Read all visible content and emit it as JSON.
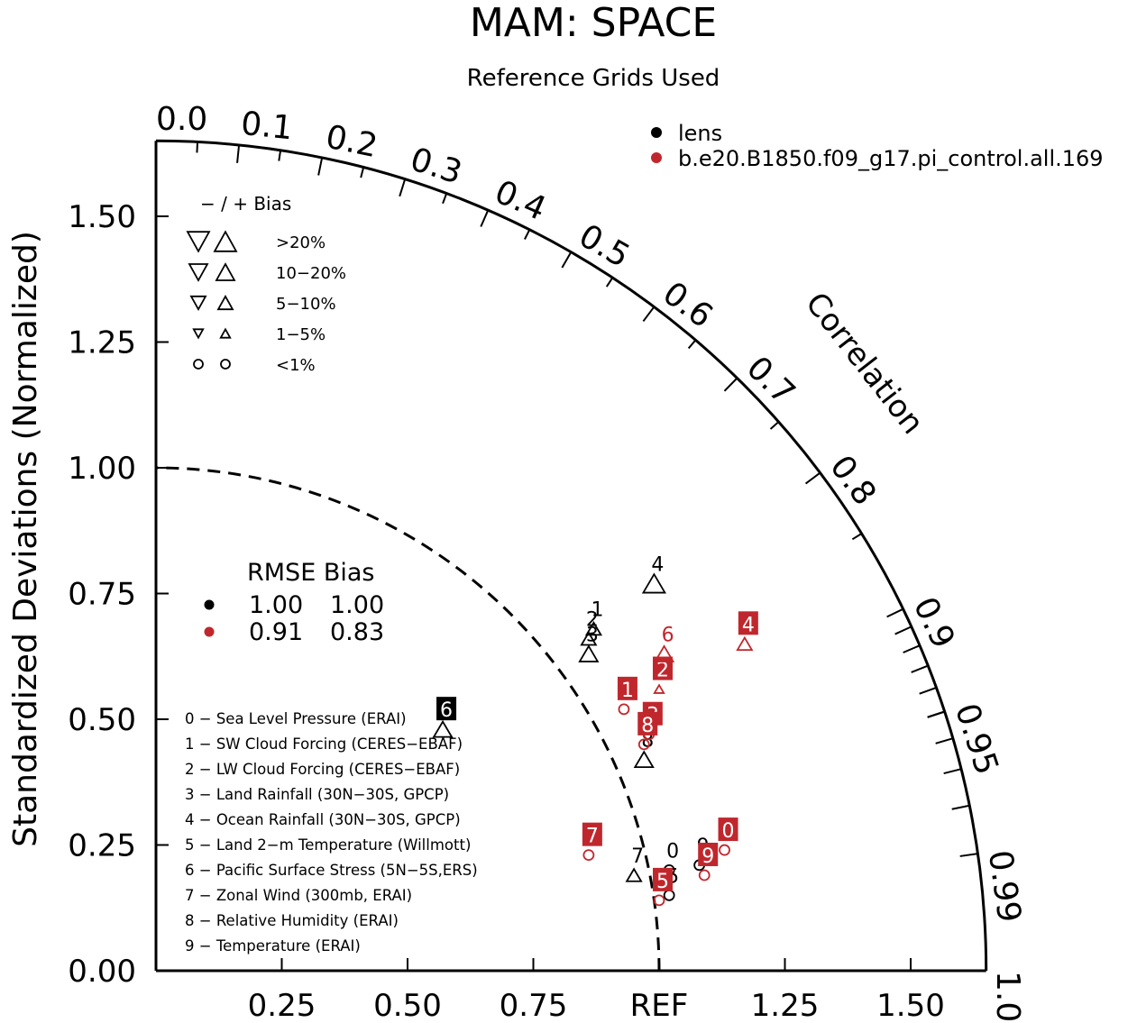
{
  "chart_data": {
    "type": "scatter",
    "title": "MAM: SPACE",
    "subtitle": "Reference Grids Used",
    "ylabel": "Standardized Deviations (Normalized)",
    "arc_label": "Correlation",
    "xlim": [
      0,
      1.65
    ],
    "ylim": [
      0,
      1.65
    ],
    "x_ticks": [
      "0.25",
      "0.50",
      "0.75",
      "REF",
      "1.25",
      "1.50"
    ],
    "x_tick_values": [
      0.25,
      0.5,
      0.75,
      1.0,
      1.25,
      1.5
    ],
    "y_ticks": [
      "0.00",
      "0.25",
      "0.50",
      "0.75",
      "1.00",
      "1.25",
      "1.50"
    ],
    "y_tick_values": [
      0.0,
      0.25,
      0.5,
      0.75,
      1.0,
      1.25,
      1.5
    ],
    "correlation_labels": [
      {
        "text": "0.0",
        "r": 0.0
      },
      {
        "text": "0.1",
        "r": 0.1
      },
      {
        "text": "0.2",
        "r": 0.2
      },
      {
        "text": "0.3",
        "r": 0.3
      },
      {
        "text": "0.4",
        "r": 0.4
      },
      {
        "text": "0.5",
        "r": 0.5
      },
      {
        "text": "0.6",
        "r": 0.6
      },
      {
        "text": "0.7",
        "r": 0.7
      },
      {
        "text": "0.8",
        "r": 0.8
      },
      {
        "text": "0.9",
        "r": 0.9
      },
      {
        "text": "0.95",
        "r": 0.95
      },
      {
        "text": "0.99",
        "r": 0.99
      },
      {
        "text": "1.0",
        "r": 1.0
      }
    ],
    "reference_std": 1.0,
    "grid": false,
    "legend": {
      "placement": "top-right",
      "entries": [
        {
          "label": "lens",
          "color": "#000000"
        },
        {
          "label": "b.e20.B1850.f09_g17.pi_control.all.169",
          "color": "#c0272d"
        }
      ]
    },
    "bias_legend": {
      "header": "− / +    Bias",
      "rows": [
        {
          "label": ">20%",
          "marker": "triangle",
          "size": 3
        },
        {
          "label": "10−20%",
          "marker": "triangle",
          "size": 2.5
        },
        {
          "label": "5−10%",
          "marker": "triangle",
          "size": 2
        },
        {
          "label": "1−5%",
          "marker": "triangle",
          "size": 1.3
        },
        {
          "label": "<1%",
          "marker": "circle",
          "size": 1.8
        }
      ]
    },
    "rmse_table": {
      "header": "RMSE Bias",
      "rows": [
        {
          "color": "#000000",
          "rmse": "1.00",
          "bias": "1.00"
        },
        {
          "color": "#c0272d",
          "rmse": "0.91",
          "bias": "0.83"
        }
      ]
    },
    "variables": [
      "0 − Sea Level Pressure (ERAI)",
      "1 − SW Cloud Forcing (CERES−EBAF)",
      "2 − LW Cloud Forcing (CERES−EBAF)",
      "3 − Land Rainfall (30N−30S, GPCP)",
      "4 − Ocean Rainfall (30N−30S, GPCP)",
      "5 − Land 2−m Temperature (Willmott)",
      "6 − Pacific Surface Stress (5N−5S,ERS)",
      "7 − Zonal Wind (300mb, ERAI)",
      "8 − Relative Humidity (ERAI)",
      "9 − Temperature (ERAI)"
    ],
    "series": [
      {
        "name": "lens",
        "color": "#000000",
        "points": [
          {
            "id": "0",
            "x": 1.02,
            "y": 0.2,
            "marker": "circle",
            "size": 1.8,
            "dir": "up",
            "boxed": false
          },
          {
            "id": "1",
            "x": 0.87,
            "y": 0.68,
            "marker": "triangle",
            "size": 2,
            "dir": "up",
            "boxed": false
          },
          {
            "id": "2",
            "x": 0.86,
            "y": 0.66,
            "marker": "triangle",
            "size": 2,
            "dir": "up",
            "boxed": false
          },
          {
            "id": "3",
            "x": 0.86,
            "y": 0.63,
            "marker": "triangle",
            "size": 2.5,
            "dir": "up",
            "boxed": false
          },
          {
            "id": "4",
            "x": 0.99,
            "y": 0.77,
            "marker": "triangle",
            "size": 3,
            "dir": "up",
            "boxed": false
          },
          {
            "id": "5",
            "x": 1.02,
            "y": 0.15,
            "marker": "circle",
            "size": 1.8,
            "dir": "up",
            "boxed": false
          },
          {
            "id": "6",
            "x": 0.57,
            "y": 0.48,
            "marker": "triangle",
            "size": 2.5,
            "dir": "up",
            "boxed": true
          },
          {
            "id": "7",
            "x": 0.95,
            "y": 0.19,
            "marker": "triangle",
            "size": 2,
            "dir": "up",
            "boxed": false
          },
          {
            "id": "8",
            "x": 0.97,
            "y": 0.42,
            "marker": "triangle",
            "size": 2.5,
            "dir": "up",
            "boxed": false
          },
          {
            "id": "9",
            "x": 1.08,
            "y": 0.21,
            "marker": "circle",
            "size": 1.8,
            "dir": "up",
            "boxed": false
          }
        ]
      },
      {
        "name": "b.e20.B1850.f09_g17.pi_control.all.169",
        "color": "#c0272d",
        "points": [
          {
            "id": "0",
            "x": 1.13,
            "y": 0.24,
            "marker": "circle",
            "size": 1.8,
            "dir": "up",
            "boxed": true
          },
          {
            "id": "1",
            "x": 0.93,
            "y": 0.52,
            "marker": "circle",
            "size": 1.8,
            "dir": "up",
            "boxed": true
          },
          {
            "id": "2",
            "x": 1.0,
            "y": 0.56,
            "marker": "triangle",
            "size": 1.3,
            "dir": "up",
            "boxed": true
          },
          {
            "id": "3",
            "x": 0.98,
            "y": 0.47,
            "marker": "circle",
            "size": 1.8,
            "dir": "up",
            "boxed": true
          },
          {
            "id": "4",
            "x": 1.17,
            "y": 0.65,
            "marker": "triangle",
            "size": 2,
            "dir": "up",
            "boxed": true
          },
          {
            "id": "5",
            "x": 1.0,
            "y": 0.14,
            "marker": "circle",
            "size": 1.8,
            "dir": "up",
            "boxed": true
          },
          {
            "id": "6",
            "x": 1.01,
            "y": 0.63,
            "marker": "triangle",
            "size": 2.5,
            "dir": "up",
            "boxed": false
          },
          {
            "id": "7",
            "x": 0.86,
            "y": 0.23,
            "marker": "circle",
            "size": 1.8,
            "dir": "up",
            "boxed": true
          },
          {
            "id": "8",
            "x": 0.97,
            "y": 0.45,
            "marker": "circle",
            "size": 1.8,
            "dir": "up",
            "boxed": true
          },
          {
            "id": "9",
            "x": 1.09,
            "y": 0.19,
            "marker": "circle",
            "size": 1.8,
            "dir": "up",
            "boxed": true
          }
        ]
      }
    ]
  }
}
